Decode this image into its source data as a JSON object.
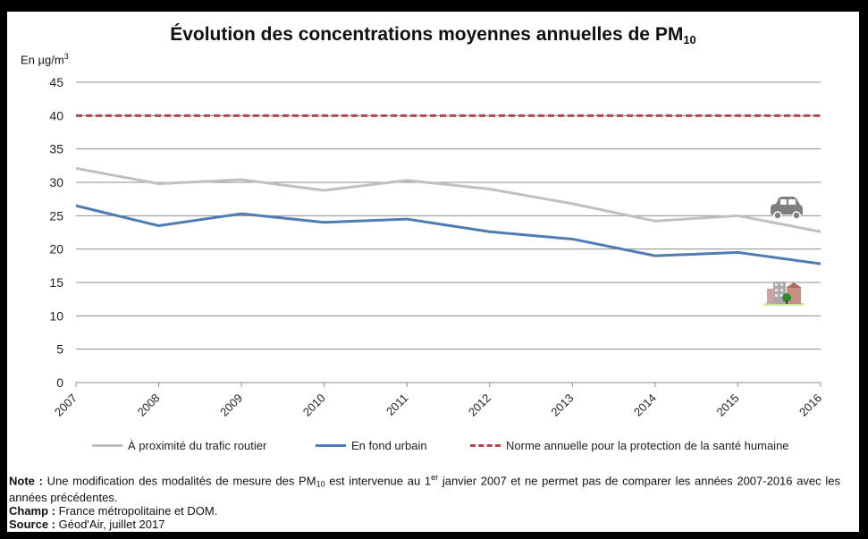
{
  "chart_data": {
    "type": "line",
    "title": "Évolution des concentrations moyennes annuelles de PM",
    "title_subscript": "10",
    "ylabel": "En µg/m",
    "ylabel_superscript": "3",
    "xlabel": "",
    "ylim": [
      0,
      45
    ],
    "yticks": [
      0,
      5,
      10,
      15,
      20,
      25,
      30,
      35,
      40,
      45
    ],
    "grid": true,
    "legend_position": "bottom",
    "x": [
      "2007",
      "2008",
      "2009",
      "2010",
      "2011",
      "2012",
      "2013",
      "2014",
      "2015",
      "2016"
    ],
    "series": [
      {
        "name": "À proximité du trafic routier",
        "color": "#c0c0c0",
        "style": "solid",
        "icon": "car-icon",
        "values": [
          32.1,
          29.8,
          30.4,
          28.8,
          30.3,
          29.0,
          26.8,
          24.2,
          25.0,
          22.6
        ]
      },
      {
        "name": "En fond urbain",
        "color": "#4f7cb3",
        "style": "solid",
        "icon": "city-buildings-icon",
        "values": [
          26.5,
          23.5,
          25.3,
          24.0,
          24.5,
          22.6,
          21.5,
          19.0,
          19.5,
          17.8
        ]
      },
      {
        "name": "Norme annuelle pour la protection de la santé humaine",
        "color": "#b5464b",
        "style": "dashed",
        "values": [
          40,
          40,
          40,
          40,
          40,
          40,
          40,
          40,
          40,
          40
        ]
      }
    ]
  },
  "notes": {
    "note_label": "Note :",
    "note_text_1": " Une modification des modalités de mesure des PM",
    "note_sub": "10",
    "note_text_2": " est intervenue  au 1",
    "note_sup": "er",
    "note_text_3": " janvier 2007 et ne permet pas de comparer les années 2007-2016 avec les années précédentes.",
    "champ_label": "Champ :",
    "champ_text": " France métropolitaine  et DOM.",
    "source_label": "Source :",
    "source_text": " Géod'Air,  juillet 2017"
  }
}
